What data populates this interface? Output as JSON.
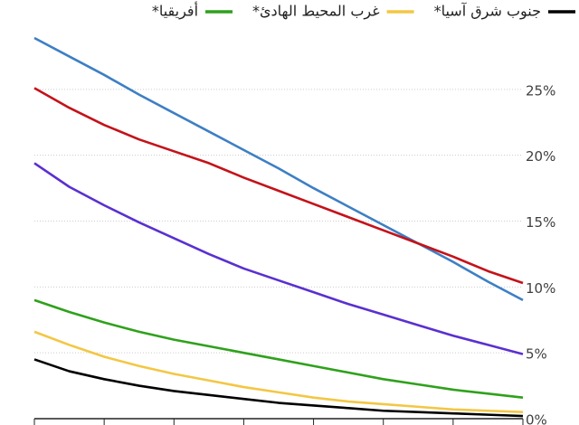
{
  "chart_data": {
    "type": "line",
    "categories": [
      null,
      null,
      null,
      null,
      null,
      null,
      null,
      null,
      null,
      null,
      null,
      null,
      null,
      null,
      null
    ],
    "series": [
      {
        "color": "#3d7fc4",
        "values": [
          28.9,
          27.5,
          26.1,
          24.6,
          23.2,
          21.8,
          20.4,
          19.0,
          17.5,
          16.1,
          14.7,
          13.3,
          11.9,
          10.4,
          9.0
        ]
      },
      {
        "color": "#c4121a",
        "values": [
          25.1,
          23.6,
          22.3,
          21.2,
          20.3,
          19.4,
          18.3,
          17.3,
          16.3,
          15.3,
          14.3,
          13.3,
          12.3,
          11.2,
          10.3
        ]
      },
      {
        "color": "#5a30d0",
        "values": [
          19.4,
          17.6,
          16.2,
          14.9,
          13.7,
          12.5,
          11.4,
          10.5,
          9.6,
          8.7,
          7.9,
          7.1,
          6.3,
          5.6,
          4.9
        ]
      },
      {
        "name": "أفريقيا*",
        "color": "#2fa11c",
        "values": [
          9.0,
          8.1,
          7.3,
          6.6,
          6.0,
          5.5,
          5.0,
          4.5,
          4.0,
          3.5,
          3.0,
          2.6,
          2.2,
          1.9,
          1.6
        ]
      },
      {
        "name": "غرب المحيط الهادئ*",
        "color": "#f3c744",
        "values": [
          6.6,
          5.6,
          4.7,
          4.0,
          3.4,
          2.9,
          2.4,
          2.0,
          1.6,
          1.3,
          1.1,
          0.9,
          0.7,
          0.6,
          0.5
        ]
      },
      {
        "name": "جنوب شرق آسيا*",
        "color": "#000000",
        "values": [
          4.5,
          3.6,
          3.0,
          2.5,
          2.1,
          1.8,
          1.5,
          1.2,
          1.0,
          0.8,
          0.6,
          0.5,
          0.4,
          0.3,
          0.2
        ]
      }
    ],
    "ylim": [
      0,
      30
    ],
    "yticks": [
      {
        "value": 0,
        "label": "0%"
      },
      {
        "value": 5,
        "label": "5%"
      },
      {
        "value": 10,
        "label": "10%"
      },
      {
        "value": 15,
        "label": "15%"
      },
      {
        "value": 20,
        "label": "20%"
      },
      {
        "value": 25,
        "label": "25%"
      }
    ],
    "grid": true
  }
}
